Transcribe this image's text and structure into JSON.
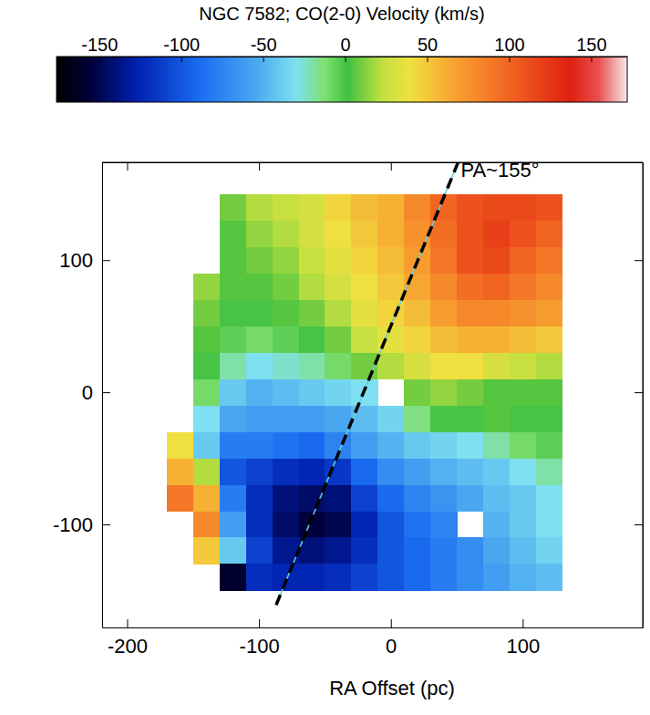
{
  "chart_data": {
    "type": "heatmap",
    "title": "NGC 7582; CO(2-0) Velocity (km/s)",
    "xlabel": "RA Offset (pc)",
    "x": [
      -160,
      -140,
      -120,
      -100,
      -80,
      -60,
      -40,
      -20,
      0,
      20,
      40,
      60,
      80,
      100,
      120
    ],
    "y": [
      140,
      120,
      100,
      80,
      60,
      40,
      20,
      0,
      -20,
      -40,
      -60,
      -80,
      -100,
      -120,
      -140
    ],
    "values": [
      [
        null,
        null,
        10,
        20,
        25,
        30,
        45,
        55,
        60,
        80,
        100,
        110,
        115,
        115,
        110
      ],
      [
        null,
        null,
        5,
        15,
        20,
        30,
        40,
        50,
        60,
        75,
        95,
        110,
        120,
        110,
        100
      ],
      [
        null,
        null,
        5,
        10,
        15,
        25,
        35,
        45,
        55,
        70,
        90,
        110,
        115,
        100,
        90
      ],
      [
        null,
        15,
        5,
        5,
        10,
        20,
        30,
        40,
        50,
        65,
        80,
        95,
        100,
        90,
        80
      ],
      [
        null,
        10,
        0,
        0,
        5,
        10,
        20,
        35,
        45,
        55,
        70,
        80,
        80,
        75,
        70
      ],
      [
        null,
        5,
        -5,
        -10,
        -5,
        0,
        10,
        25,
        35,
        45,
        55,
        60,
        60,
        55,
        50
      ],
      [
        null,
        0,
        -20,
        -30,
        -25,
        -20,
        -10,
        10,
        20,
        30,
        40,
        40,
        30,
        25,
        20
      ],
      [
        null,
        -10,
        -40,
        -50,
        -45,
        -40,
        -35,
        -30,
        null,
        10,
        15,
        10,
        5,
        5,
        5
      ],
      [
        null,
        -30,
        -55,
        -60,
        -60,
        -60,
        -55,
        -45,
        -35,
        -15,
        0,
        0,
        5,
        0,
        0
      ],
      [
        40,
        -40,
        -80,
        -80,
        -85,
        -90,
        -75,
        -60,
        -50,
        -40,
        -35,
        -30,
        -20,
        -10,
        -5
      ],
      [
        60,
        20,
        -100,
        -110,
        -120,
        -125,
        -115,
        -90,
        -70,
        -60,
        -50,
        -45,
        -40,
        -30,
        -20
      ],
      [
        90,
        60,
        -80,
        -120,
        -140,
        -145,
        -140,
        -110,
        -90,
        -75,
        -65,
        -55,
        -45,
        -40,
        -30
      ],
      [
        null,
        80,
        -60,
        -120,
        -145,
        -155,
        -150,
        -125,
        -100,
        -85,
        -75,
        null,
        -50,
        -40,
        -30
      ],
      [
        null,
        50,
        -40,
        -110,
        -135,
        -140,
        -135,
        -120,
        -100,
        -90,
        -80,
        -70,
        -55,
        -45,
        -35
      ],
      [
        null,
        null,
        -160,
        -120,
        -125,
        -125,
        -120,
        -110,
        -100,
        -90,
        -80,
        -70,
        -60,
        -50,
        -45
      ]
    ],
    "xlim": [
      -219,
      191
    ],
    "ylim": [
      -178,
      174
    ],
    "xticks": [
      -200,
      -100,
      0,
      100
    ],
    "yticks": [
      -100,
      0,
      100
    ],
    "colorbar": {
      "range": [
        -176,
        172
      ],
      "ticks": [
        -150,
        -100,
        -50,
        0,
        50,
        100,
        150
      ]
    },
    "line": {
      "x": [
        -87,
        51
      ],
      "y": [
        -161,
        174
      ]
    },
    "annotations": [
      {
        "text": "PA~155°",
        "x": 53,
        "y": 163
      }
    ]
  }
}
